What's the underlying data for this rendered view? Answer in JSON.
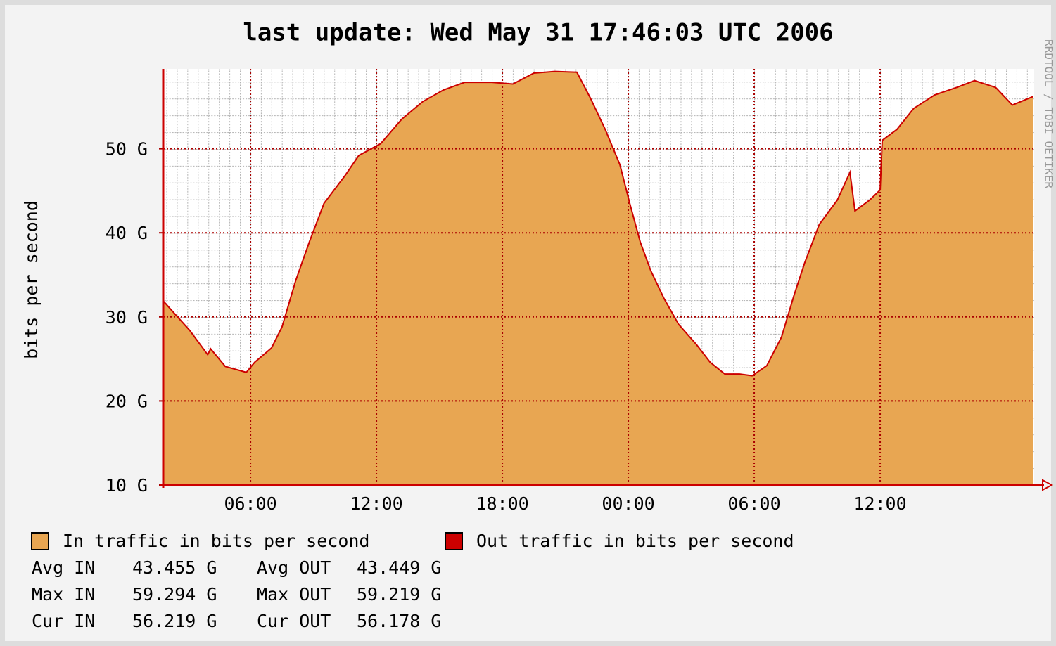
{
  "chart_data": {
    "type": "area",
    "title": "last update: Wed May 31 17:46:03 UTC 2006",
    "y_label": "bits per second",
    "side_label": "RRDTOOL / TOBI OETIKER",
    "x": [
      1.84,
      3.1,
      3.96,
      4.1,
      4.8,
      5.8,
      6.2,
      7.0,
      7.5,
      8.15,
      8.8,
      9.5,
      10.5,
      11.16,
      12.2,
      13.2,
      14.2,
      15.2,
      16.2,
      17.5,
      18.5,
      19.5,
      20.5,
      21.55,
      22.2,
      22.9,
      23.6,
      24.07,
      24.57,
      25.07,
      25.7,
      26.4,
      27.25,
      27.9,
      28.6,
      29.3,
      29.9,
      30.6,
      31.3,
      31.9,
      32.4,
      33.1,
      33.96,
      34.56,
      34.8,
      35.5,
      36.0,
      36.1,
      36.8,
      37.6,
      38.6,
      39.65,
      40.5,
      41.5,
      42.3,
      43.28
    ],
    "series": [
      {
        "name": "In traffic in bits per second",
        "color": "#e8a652",
        "values": [
          31.9,
          28.4,
          25.5,
          26.2,
          24.1,
          23.4,
          24.6,
          26.3,
          28.8,
          34.3,
          38.9,
          43.5,
          46.8,
          49.2,
          50.6,
          53.5,
          55.6,
          57.0,
          57.9,
          57.9,
          57.7,
          59.0,
          59.2,
          59.1,
          56.0,
          52.3,
          48.1,
          43.5,
          38.9,
          35.5,
          32.2,
          29.1,
          26.7,
          24.6,
          23.2,
          23.2,
          23.0,
          24.2,
          27.6,
          32.6,
          36.4,
          41.0,
          43.9,
          47.2,
          42.6,
          43.9,
          45.1,
          51.0,
          52.3,
          54.8,
          56.4,
          57.3,
          58.1,
          57.3,
          55.2,
          56.2
        ]
      },
      {
        "name": "Out traffic in bits per second",
        "color": "#cc0000",
        "values": [
          31.9,
          28.4,
          25.5,
          26.2,
          24.1,
          23.4,
          24.6,
          26.3,
          28.8,
          34.3,
          38.9,
          43.5,
          46.8,
          49.2,
          50.6,
          53.5,
          55.6,
          57.0,
          57.9,
          57.9,
          57.7,
          59.0,
          59.2,
          59.1,
          56.0,
          52.3,
          48.1,
          43.5,
          38.9,
          35.5,
          32.2,
          29.1,
          26.7,
          24.6,
          23.2,
          23.2,
          23.0,
          24.2,
          27.6,
          32.6,
          36.4,
          41.0,
          43.9,
          47.2,
          42.6,
          43.9,
          45.1,
          51.0,
          52.3,
          54.8,
          56.4,
          57.3,
          58.1,
          57.3,
          55.2,
          56.2
        ]
      }
    ],
    "xlim": [
      1.84,
      43.34
    ],
    "xticks": [
      {
        "value": 6,
        "label": "06:00"
      },
      {
        "value": 12,
        "label": "12:00"
      },
      {
        "value": 18,
        "label": "18:00"
      },
      {
        "value": 24,
        "label": "00:00"
      },
      {
        "value": 30,
        "label": "06:00"
      },
      {
        "value": 36,
        "label": "12:00"
      }
    ],
    "ylim": [
      10,
      59.5
    ],
    "yticks": [
      {
        "value": 10,
        "label": "10 G"
      },
      {
        "value": 20,
        "label": "20 G"
      },
      {
        "value": 30,
        "label": "30 G"
      },
      {
        "value": 40,
        "label": "40 G"
      },
      {
        "value": 50,
        "label": "50 G"
      }
    ],
    "grid": true,
    "stats": [
      [
        "Avg IN",
        "43.455 G",
        "Avg OUT",
        "43.449 G"
      ],
      [
        "Max IN",
        "59.294 G",
        "Max OUT",
        "59.219 G"
      ],
      [
        "Cur IN",
        "56.219 G",
        "Cur OUT",
        "56.178 G"
      ]
    ]
  }
}
